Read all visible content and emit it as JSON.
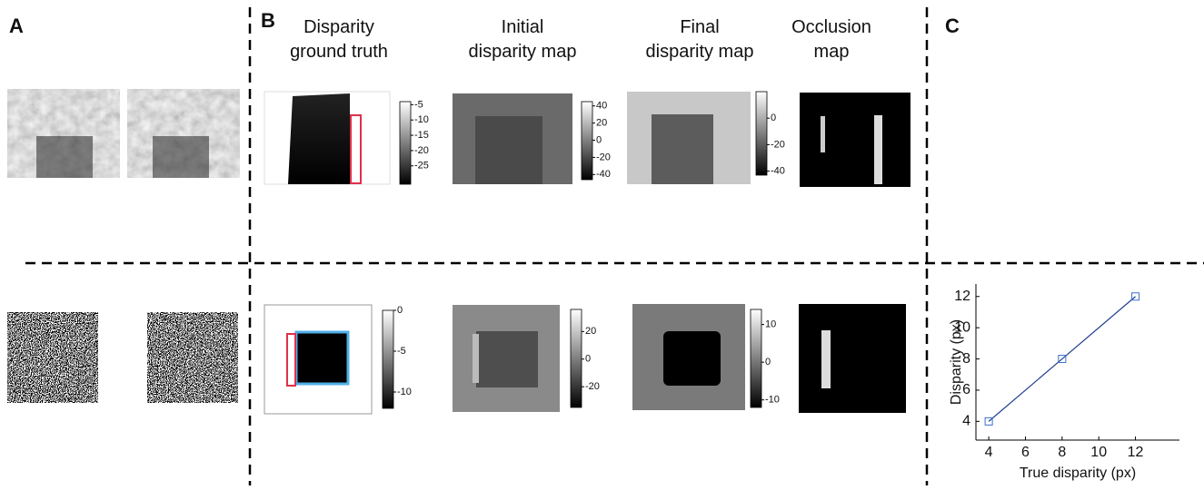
{
  "panels": {
    "a": "A",
    "b": "B",
    "c": "C"
  },
  "columns": [
    [
      "Disparity",
      "ground truth"
    ],
    [
      "Initial",
      "disparity map"
    ],
    [
      "Final",
      "disparity map"
    ],
    [
      "Occlusion",
      "map"
    ]
  ],
  "colorbars": [
    {
      "lim": [
        -31,
        -4
      ],
      "ticks": [
        -5,
        -10,
        -15,
        -20,
        -25
      ]
    },
    {
      "lim": [
        -46,
        45
      ],
      "ticks": [
        40,
        20,
        0,
        -20,
        -40
      ]
    },
    {
      "lim": [
        -43,
        20
      ],
      "ticks": [
        0,
        -20,
        -40
      ]
    },
    {
      "lim": [
        -12,
        0
      ],
      "ticks": [
        0,
        -5,
        -10
      ]
    },
    {
      "lim": [
        -35,
        36
      ],
      "ticks": [
        20,
        0,
        -20
      ]
    },
    {
      "lim": [
        -12,
        14
      ],
      "ticks": [
        10,
        0,
        -10
      ]
    }
  ],
  "chart_data": {
    "type": "line",
    "xlabel": "True disparity (px)",
    "ylabel": "Disparity (px)",
    "x": [
      4,
      8,
      12
    ],
    "series": [
      {
        "color": "#1f3f8f",
        "values": [
          4,
          8,
          12
        ]
      }
    ],
    "xlim": [
      3.3,
      14.4
    ],
    "ylim": [
      2.8,
      12.8
    ],
    "xticks": [
      4,
      6,
      8,
      10,
      12
    ],
    "yticks": [
      4,
      6,
      8,
      10,
      12
    ]
  }
}
